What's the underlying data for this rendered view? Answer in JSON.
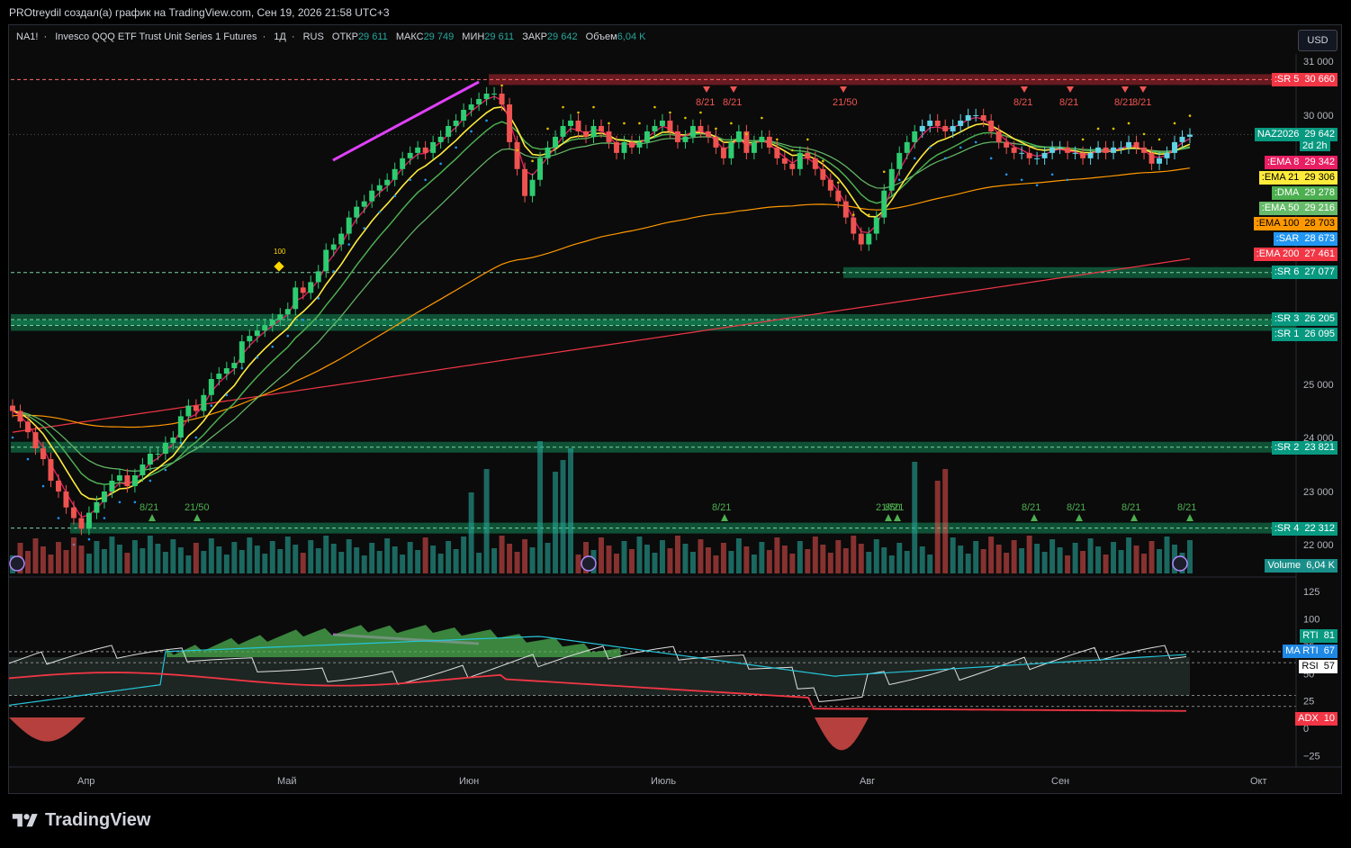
{
  "attribution": "PROtreydil создал(а) график на TradingView.com, Сен 19, 2026 21:58 UTC+3",
  "header": {
    "symbol": "NA1!",
    "description": "Invesco QQQ ETF Trust Unit Series 1 Futures",
    "interval": "1Д",
    "exchange": "RUS",
    "open_label": "ОТКР",
    "open": "29 611",
    "high_label": "МАКС",
    "high": "29 749",
    "low_label": "МИН",
    "low": "29 611",
    "close_label": "ЗАКР",
    "close": "29 642",
    "volume_label": "Объем",
    "volume": "6,04 K"
  },
  "currency_button": "USD",
  "logo_text": "TradingView",
  "colors": {
    "up": "#26a69a",
    "down": "#ef5350",
    "ema8": "#e91e63",
    "ema21": "#ffeb3b",
    "dma": "#4caf50",
    "ema50": "#66bb6a",
    "ema100": "#ff9800",
    "ema200": "#f23645",
    "sar": "#2196f3",
    "rsi": "#ffffff",
    "rti": "#26a69a"
  },
  "chart_data": {
    "type": "candlestick",
    "price_axis": {
      "ticks": [
        "31 000",
        "30 000",
        "25 000",
        "24 000",
        "23 000",
        "22 000"
      ],
      "ylim": [
        21500,
        31300
      ]
    },
    "time_axis": {
      "ticks": [
        "Апр",
        "Май",
        "Июн",
        "Июль",
        "Авг",
        "Сен",
        "Окт"
      ]
    },
    "closes": [
      24500,
      24300,
      24100,
      23800,
      23600,
      23200,
      23000,
      22700,
      22500,
      22300,
      22600,
      22800,
      23000,
      23200,
      23300,
      23100,
      23300,
      23500,
      23700,
      23700,
      23900,
      24000,
      24400,
      24600,
      24500,
      24800,
      25100,
      25200,
      25300,
      25400,
      25800,
      25900,
      26000,
      26100,
      26200,
      26300,
      26400,
      26800,
      26700,
      26900,
      27100,
      27500,
      27600,
      27800,
      28100,
      28300,
      28400,
      28600,
      28700,
      28800,
      29000,
      29200,
      29300,
      29400,
      29300,
      29500,
      29600,
      29800,
      29900,
      30100,
      30200,
      30300,
      30400,
      30400,
      30200,
      29500,
      29000,
      28500,
      28800,
      29200,
      29400,
      29600,
      29800,
      29900,
      29700,
      29600,
      29800,
      29700,
      29500,
      29300,
      29500,
      29400,
      29500,
      29700,
      29800,
      29900,
      29700,
      29500,
      29600,
      29800,
      29700,
      29600,
      29400,
      29200,
      29500,
      29700,
      29300,
      29500,
      29600,
      29400,
      29200,
      29100,
      29000,
      29300,
      29200,
      29000,
      28800,
      28600,
      28400,
      28100,
      27800,
      27600,
      27800,
      28100,
      28600,
      29000,
      29300,
      29500,
      29700,
      29800,
      29900,
      29800,
      29700,
      29800,
      29900,
      30000,
      30000,
      29900,
      29700,
      29500,
      29400,
      29300,
      29300,
      29200,
      29200,
      29300,
      29400,
      29400,
      29300,
      29300,
      29200,
      29300,
      29400,
      29300,
      29400,
      29400,
      29500,
      29400,
      29300,
      29100,
      29200,
      29300,
      29500,
      29600,
      29640
    ],
    "series_labels": [
      {
        "name": "NAZ2026",
        "value": "29 642",
        "extra": "2d 2h"
      },
      {
        "name": ":EMA 8",
        "value": "29 342"
      },
      {
        "name": ":EMA 21",
        "value": "29 306"
      },
      {
        "name": ":DMA",
        "value": "29 278"
      },
      {
        "name": ":EMA 50",
        "value": "29 216"
      },
      {
        "name": ":EMA 100",
        "value": "28 703"
      },
      {
        "name": ":SAR",
        "value": "28 673"
      },
      {
        "name": ":EMA 200",
        "value": "27 461"
      }
    ],
    "levels": [
      {
        "name": ":SR 5",
        "value": "30 660",
        "price": 30660,
        "kind": "resistance"
      },
      {
        "name": ":SR 6",
        "value": "27 077",
        "price": 27077,
        "kind": "support"
      },
      {
        "name": ":SR 3",
        "value": "26 205",
        "price": 26205,
        "kind": "support"
      },
      {
        "name": ":SR 1",
        "value": "26 095",
        "price": 26095,
        "kind": "support"
      },
      {
        "name": ":SR 2",
        "value": "23 821",
        "price": 23821,
        "kind": "support"
      },
      {
        "name": ":SR 4",
        "value": "22 312",
        "price": 22312,
        "kind": "support"
      }
    ],
    "signals_top": [
      "8/21",
      "8/21",
      "21/50",
      "8/21",
      "8/21",
      "8/21",
      "8/21"
    ],
    "signals_bottom": [
      "8/21",
      "21/50",
      "8/21",
      "21/50",
      "8/21",
      "8/21",
      "8/21",
      "8/21",
      "8/21"
    ],
    "marker_100": "100",
    "volume_label": {
      "name": "Volume",
      "value": "6,04 K"
    },
    "oscillator": {
      "axis_ticks": [
        "125",
        "100",
        "75",
        "50",
        "25",
        "0",
        "−25"
      ],
      "labels": [
        {
          "name": "RTI",
          "value": "81"
        },
        {
          "name": "MA RTI",
          "value": "67"
        },
        {
          "name": "RSI",
          "value": "57"
        },
        {
          "name": "ADX",
          "value": "10"
        }
      ]
    }
  }
}
